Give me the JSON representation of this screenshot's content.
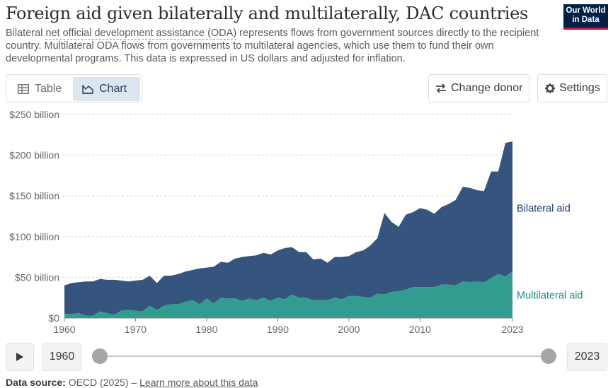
{
  "header": {
    "title": "Foreign aid given bilaterally and multilaterally, DAC countries",
    "subtitle_pre": "Bilateral ",
    "subtitle_link": "net official development assistance (ODA)",
    "subtitle_post": " represents flows from government sources directly to the recipient country. Multilateral ODA flows from governments to multilateral agencies, which use them to fund their own developmental programs. This data is expressed in US dollars and adjusted for inflation.",
    "logo_line1": "Our World",
    "logo_line2": "in Data"
  },
  "tabs": [
    {
      "label": "Table",
      "icon": "table-icon",
      "active": false
    },
    {
      "label": "Chart",
      "icon": "chart-icon",
      "active": true
    }
  ],
  "controls": {
    "change_donor": "Change donor",
    "settings": "Settings"
  },
  "timeline": {
    "start": "1960",
    "end": "2023"
  },
  "footer": {
    "source_label": "Data source:",
    "source_text": "OECD (2025) – ",
    "learn_more": "Learn more about this data"
  },
  "colors": {
    "bilateral": "#35547e",
    "multilateral": "#339c91",
    "bilateral_label": "#1a3a66",
    "multilateral_label": "#1a8a7e"
  },
  "chart_data": {
    "type": "area",
    "stacked": true,
    "yunit": "billion US$",
    "ylim": [
      0,
      250
    ],
    "yticks": [
      0,
      50,
      100,
      150,
      200,
      250
    ],
    "ytick_labels": [
      "$0",
      "$50 billion",
      "$100 billion",
      "$150 billion",
      "$200 billion",
      "$250 billion"
    ],
    "xlim": [
      1960,
      2023
    ],
    "xticks": [
      1960,
      1970,
      1980,
      1990,
      2000,
      2010,
      2023
    ],
    "xtick_labels": [
      "1960",
      "1970",
      "1980",
      "1990",
      "2000",
      "2010",
      "2023"
    ],
    "grid": true,
    "legend": "inline-right",
    "x": [
      1960,
      1961,
      1962,
      1963,
      1964,
      1965,
      1966,
      1967,
      1968,
      1969,
      1970,
      1971,
      1972,
      1973,
      1974,
      1975,
      1976,
      1977,
      1978,
      1979,
      1980,
      1981,
      1982,
      1983,
      1984,
      1985,
      1986,
      1987,
      1988,
      1989,
      1990,
      1991,
      1992,
      1993,
      1994,
      1995,
      1996,
      1997,
      1998,
      1999,
      2000,
      2001,
      2002,
      2003,
      2004,
      2005,
      2006,
      2007,
      2008,
      2009,
      2010,
      2011,
      2012,
      2013,
      2014,
      2015,
      2016,
      2017,
      2018,
      2019,
      2020,
      2021,
      2022,
      2023
    ],
    "series": [
      {
        "name": "Multilateral aid",
        "values": [
          5,
          5,
          6,
          3,
          3,
          8,
          6,
          4,
          9,
          10,
          9,
          8,
          15,
          10,
          15,
          17,
          17,
          20,
          22,
          17,
          24,
          18,
          25,
          24,
          24,
          21,
          24,
          22,
          25,
          21,
          25,
          23,
          29,
          25,
          25,
          22,
          22,
          22,
          25,
          23,
          27,
          27,
          26,
          25,
          30,
          29,
          32,
          33,
          35,
          38,
          38,
          38,
          38,
          41,
          41,
          40,
          45,
          44,
          45,
          44,
          49,
          54,
          51,
          57
        ]
      },
      {
        "name": "Bilateral aid",
        "values": [
          35,
          38,
          38,
          42,
          42,
          40,
          41,
          43,
          37,
          35,
          37,
          39,
          37,
          33,
          37,
          35,
          37,
          37,
          37,
          44,
          38,
          45,
          44,
          44,
          49,
          54,
          52,
          55,
          55,
          57,
          58,
          63,
          58,
          56,
          56,
          50,
          51,
          46,
          50,
          52,
          49,
          54,
          57,
          64,
          68,
          100,
          86,
          79,
          92,
          92,
          97,
          95,
          90,
          95,
          99,
          105,
          116,
          116,
          112,
          112,
          131,
          126,
          164,
          160
        ]
      }
    ]
  }
}
